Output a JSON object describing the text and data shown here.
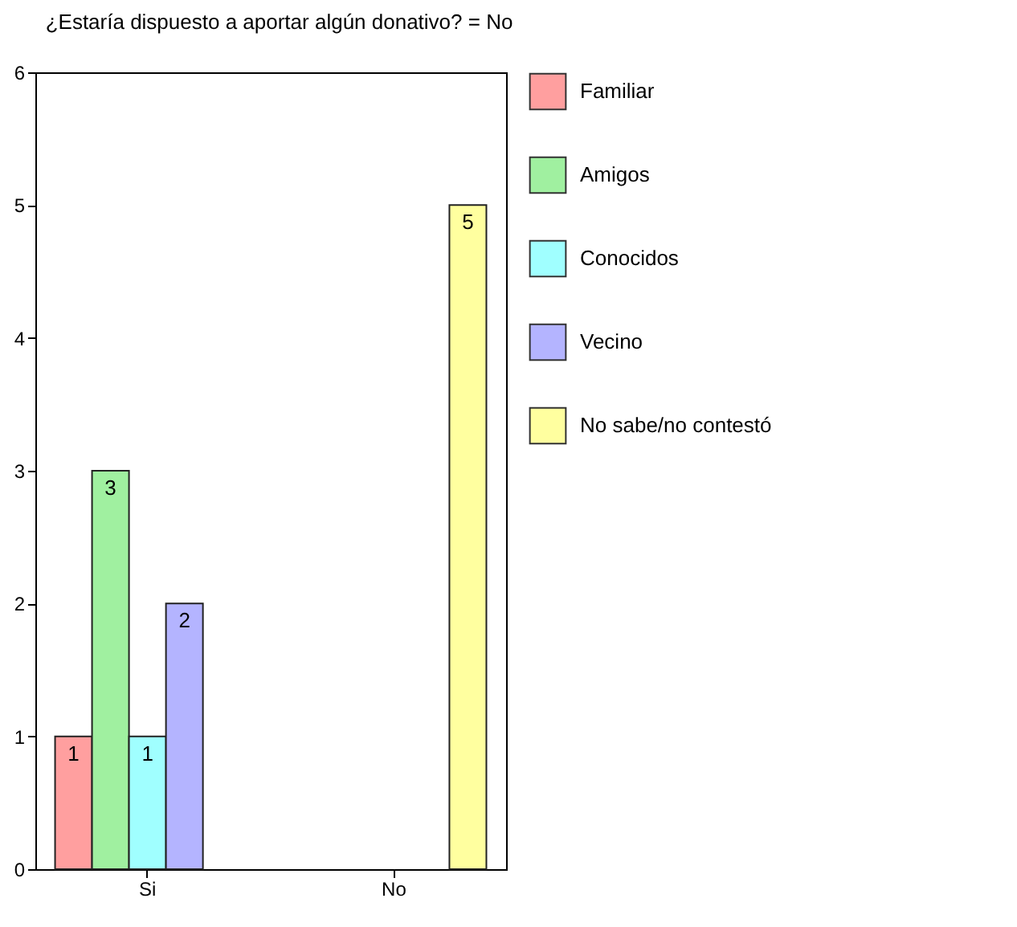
{
  "chart_data": {
    "type": "bar",
    "title": "¿Estaría dispuesto a aportar algún donativo? = No",
    "categories": [
      "Si",
      "No"
    ],
    "series": [
      {
        "name": "Familiar",
        "color": "#ff9f9f",
        "values": [
          1,
          null
        ]
      },
      {
        "name": "Amigos",
        "color": "#a0f0a0",
        "values": [
          3,
          null
        ]
      },
      {
        "name": "Conocidos",
        "color": "#a0ffff",
        "values": [
          1,
          null
        ]
      },
      {
        "name": "Vecino",
        "color": "#b4b4ff",
        "values": [
          2,
          null
        ]
      },
      {
        "name": "No sabe/no contestó",
        "color": "#ffff9f",
        "values": [
          null,
          5
        ]
      }
    ],
    "ylim": [
      0,
      6
    ],
    "yticks": [
      0,
      1,
      2,
      3,
      4,
      5,
      6
    ],
    "grid": false,
    "legend": "right",
    "data_labels": true
  }
}
